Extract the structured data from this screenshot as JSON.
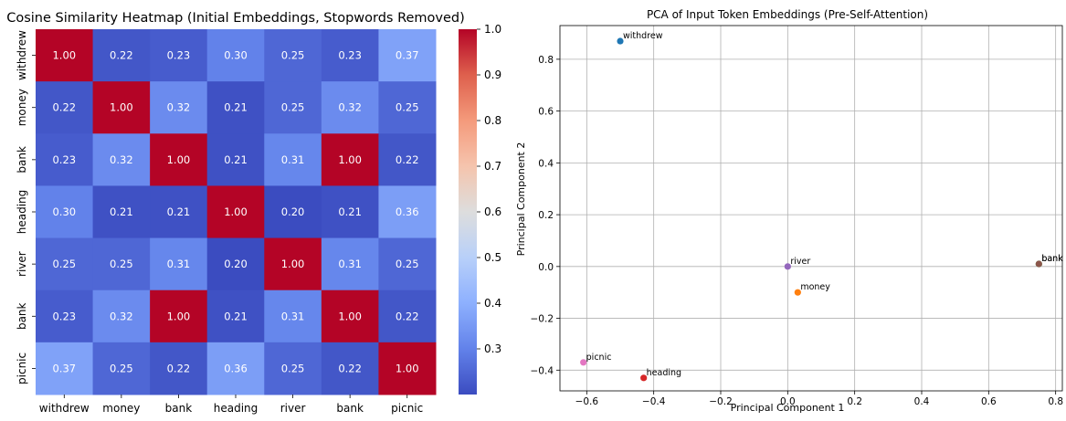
{
  "chart_data": [
    {
      "type": "heatmap",
      "title": "Cosine Similarity Heatmap (Initial Embeddings, Stopwords Removed)",
      "x_labels": [
        "withdrew",
        "money",
        "bank",
        "heading",
        "river",
        "bank",
        "picnic"
      ],
      "y_labels": [
        "withdrew",
        "money",
        "bank",
        "heading",
        "river",
        "bank",
        "picnic"
      ],
      "values": [
        [
          1.0,
          0.22,
          0.23,
          0.3,
          0.25,
          0.23,
          0.37
        ],
        [
          0.22,
          1.0,
          0.32,
          0.21,
          0.25,
          0.32,
          0.25
        ],
        [
          0.23,
          0.32,
          1.0,
          0.21,
          0.31,
          1.0,
          0.22
        ],
        [
          0.3,
          0.21,
          0.21,
          1.0,
          0.2,
          0.21,
          0.36
        ],
        [
          0.25,
          0.25,
          0.31,
          0.2,
          1.0,
          0.31,
          0.25
        ],
        [
          0.23,
          0.32,
          1.0,
          0.21,
          0.31,
          1.0,
          0.22
        ],
        [
          0.37,
          0.25,
          0.22,
          0.36,
          0.25,
          0.22,
          1.0
        ]
      ],
      "value_labels": [
        [
          "1.00",
          "0.22",
          "0.23",
          "0.30",
          "0.25",
          "0.23",
          "0.37"
        ],
        [
          "0.22",
          "1.00",
          "0.32",
          "0.21",
          "0.25",
          "0.32",
          "0.25"
        ],
        [
          "0.23",
          "0.32",
          "1.00",
          "0.21",
          "0.31",
          "1.00",
          "0.22"
        ],
        [
          "0.30",
          "0.21",
          "0.21",
          "1.00",
          "0.20",
          "0.21",
          "0.36"
        ],
        [
          "0.25",
          "0.25",
          "0.31",
          "0.20",
          "1.00",
          "0.31",
          "0.25"
        ],
        [
          "0.23",
          "0.32",
          "1.00",
          "0.21",
          "0.31",
          "1.00",
          "0.22"
        ],
        [
          "0.37",
          "0.25",
          "0.22",
          "0.36",
          "0.25",
          "0.22",
          "1.00"
        ]
      ],
      "colormap": "coolwarm",
      "colorbar": {
        "range": [
          0.2,
          1.0
        ],
        "ticks": [
          0.3,
          0.4,
          0.5,
          0.6,
          0.7,
          0.8,
          0.9,
          1.0
        ],
        "tick_labels": [
          "0.3",
          "0.4",
          "0.5",
          "0.6",
          "0.7",
          "0.8",
          "0.9",
          "1.0"
        ]
      }
    },
    {
      "type": "scatter",
      "title": "PCA of Input Token Embeddings (Pre-Self-Attention)",
      "xlabel": "Principal Component 1",
      "ylabel": "Principal Component 2",
      "xlim": [
        -0.68,
        0.82
      ],
      "ylim": [
        -0.48,
        0.93
      ],
      "grid": true,
      "xticks": [
        -0.6,
        -0.4,
        -0.2,
        0.0,
        0.2,
        0.4,
        0.6,
        0.8
      ],
      "xtick_labels": [
        "−0.6",
        "−0.4",
        "−0.2",
        "0.0",
        "0.2",
        "0.4",
        "0.6",
        "0.8"
      ],
      "yticks": [
        -0.4,
        -0.2,
        0.0,
        0.2,
        0.4,
        0.6,
        0.8
      ],
      "ytick_labels": [
        "−0.4",
        "−0.2",
        "0.0",
        "0.2",
        "0.4",
        "0.6",
        "0.8"
      ],
      "points": [
        {
          "label": "withdrew",
          "x": -0.5,
          "y": 0.87,
          "color": "#1f77b4"
        },
        {
          "label": "money",
          "x": 0.03,
          "y": -0.1,
          "color": "#ff7f0e"
        },
        {
          "label": "bank",
          "x": 0.75,
          "y": 0.01,
          "color": "#2ca02c"
        },
        {
          "label": "heading",
          "x": -0.43,
          "y": -0.43,
          "color": "#d62728"
        },
        {
          "label": "river",
          "x": 0.0,
          "y": 0.0,
          "color": "#9467bd"
        },
        {
          "label": "bank",
          "x": 0.75,
          "y": 0.01,
          "color": "#8c564b"
        },
        {
          "label": "picnic",
          "x": -0.61,
          "y": -0.37,
          "color": "#e377c2"
        }
      ]
    }
  ]
}
